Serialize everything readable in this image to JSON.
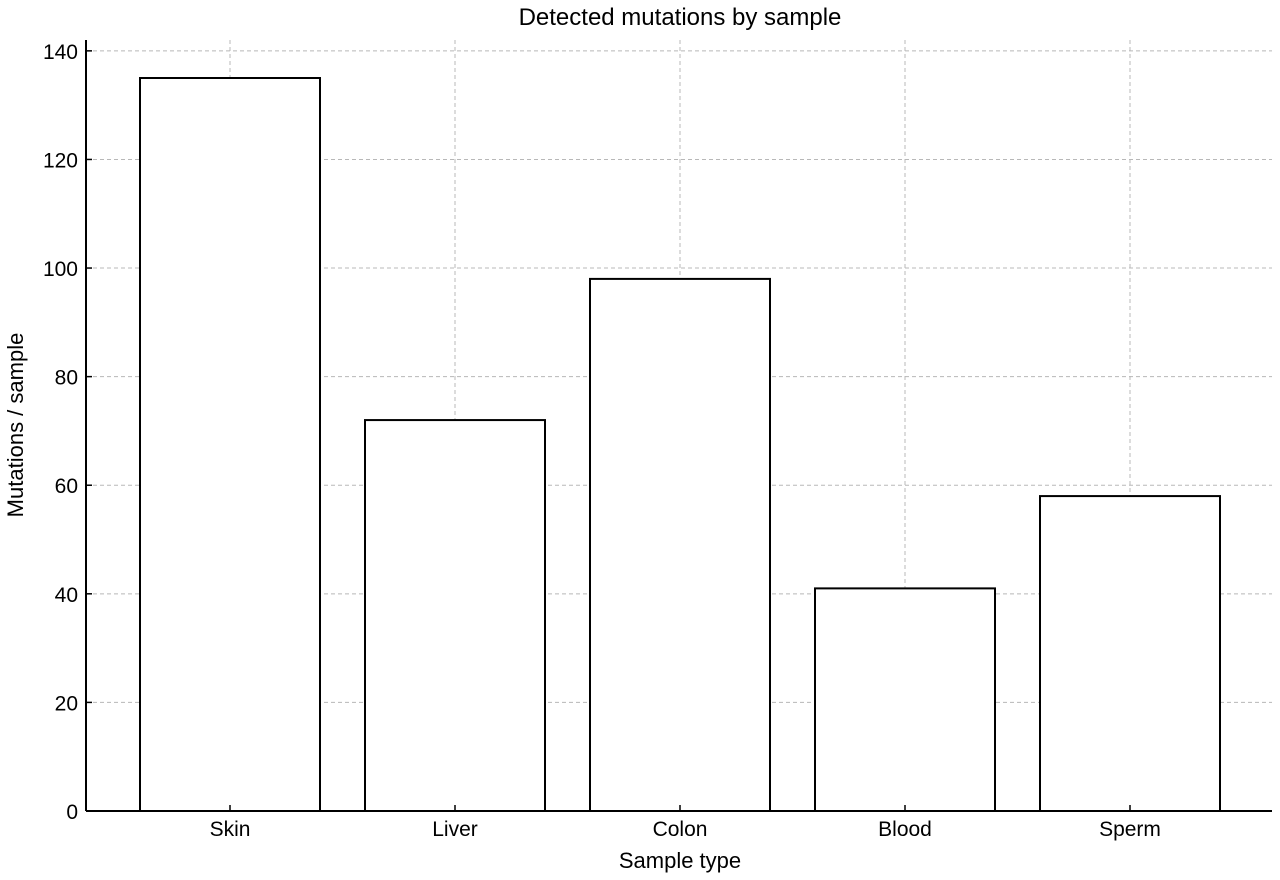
{
  "chart_data": {
    "type": "bar",
    "title": "Detected mutations by sample",
    "xlabel": "Sample type",
    "ylabel": "Mutations / sample",
    "categories": [
      "Skin",
      "Liver",
      "Colon",
      "Blood",
      "Sperm"
    ],
    "values": [
      135,
      72,
      98,
      41,
      58
    ],
    "ylim": [
      0,
      142
    ],
    "yticks": [
      0,
      20,
      40,
      60,
      80,
      100,
      120,
      140
    ],
    "grid": true,
    "colors": {
      "bar_fill": "#ffffff",
      "bar_edge": "#000000",
      "grid": "#b8b8b8"
    }
  }
}
